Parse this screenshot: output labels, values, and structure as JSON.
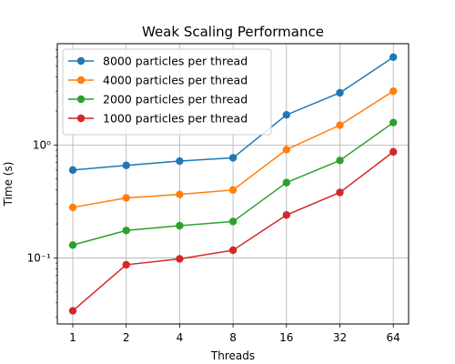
{
  "chart_data": {
    "type": "line",
    "title": "Weak Scaling Performance",
    "xlabel": "Threads",
    "ylabel": "Time (s)",
    "x_scale": "categorical",
    "y_scale": "log",
    "ylim": [
      0.026,
      7.9
    ],
    "grid": true,
    "legend_position": "top-left",
    "categories": [
      "1",
      "2",
      "4",
      "8",
      "16",
      "32",
      "64"
    ],
    "y_tick_labels": [
      "10⁻¹",
      "10⁰"
    ],
    "y_tick_values": [
      0.1,
      1
    ],
    "series": [
      {
        "name": "8000 particles per thread",
        "color": "#1f77b4",
        "values": [
          0.6,
          0.66,
          0.72,
          0.77,
          1.85,
          2.9,
          6.0
        ]
      },
      {
        "name": "4000 particles per thread",
        "color": "#ff7f0e",
        "values": [
          0.28,
          0.34,
          0.365,
          0.4,
          0.91,
          1.5,
          3.0
        ]
      },
      {
        "name": "2000 particles per thread",
        "color": "#2ca02c",
        "values": [
          0.13,
          0.175,
          0.193,
          0.21,
          0.465,
          0.73,
          1.58
        ]
      },
      {
        "name": "1000 particles per thread",
        "color": "#d62728",
        "values": [
          0.034,
          0.087,
          0.098,
          0.117,
          0.24,
          0.38,
          0.87
        ]
      }
    ]
  }
}
